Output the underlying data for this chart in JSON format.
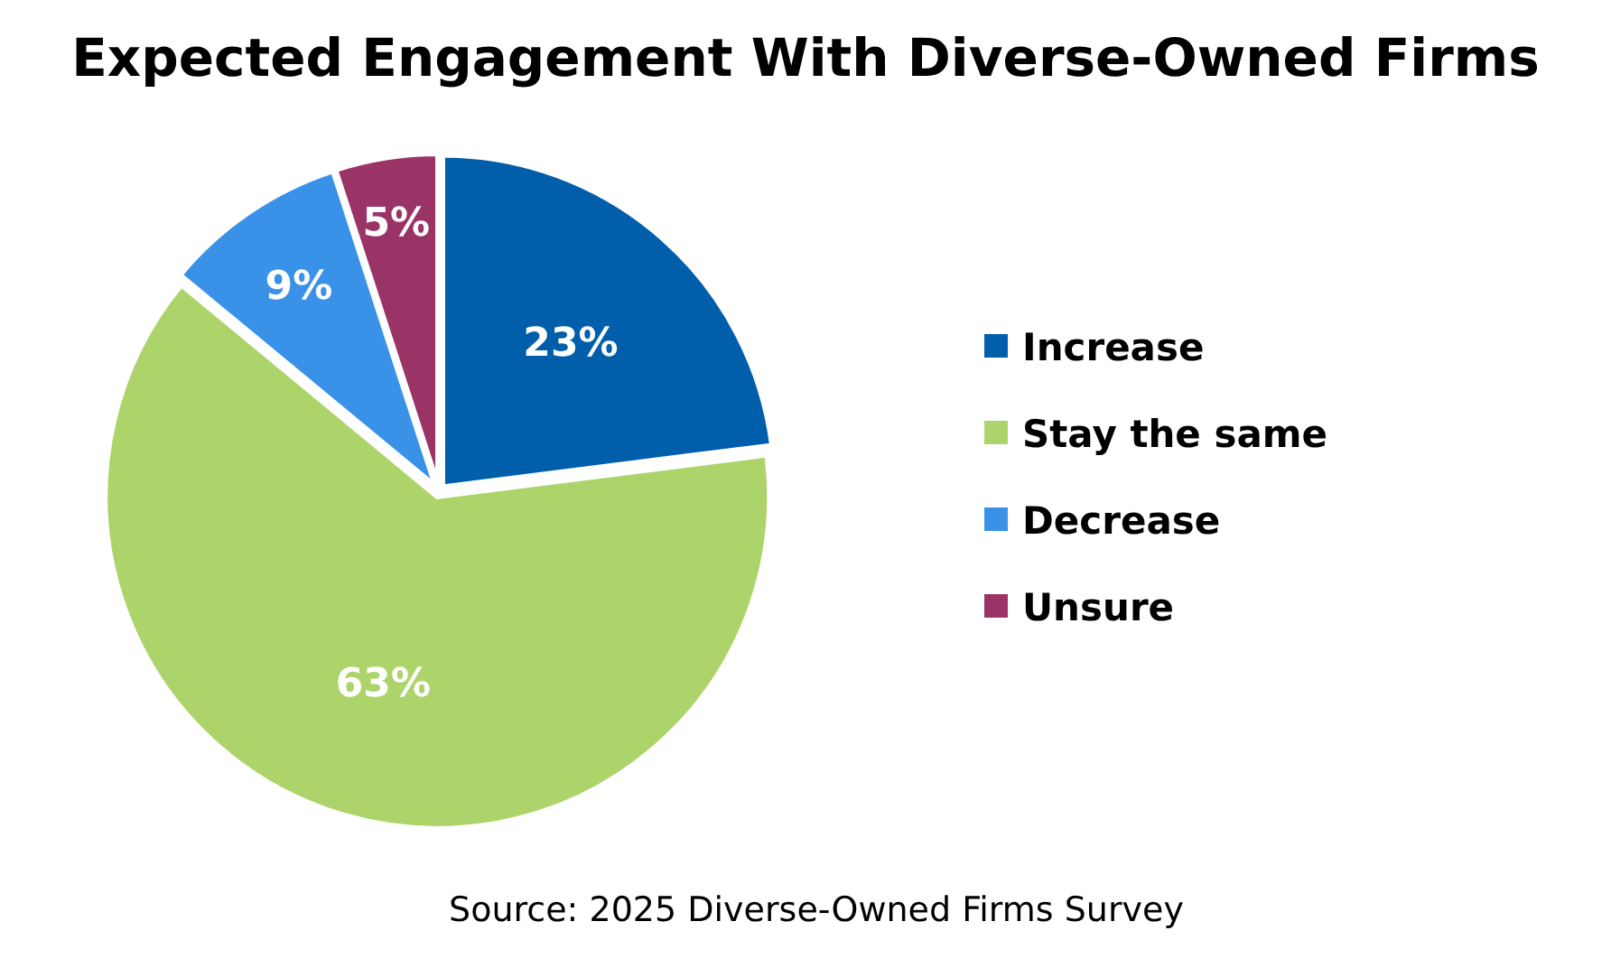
{
  "chart_data": {
    "type": "pie",
    "title": "Expected Engagement With Diverse-Owned Firms",
    "categories": [
      "Increase",
      "Stay the same",
      "Decrease",
      "Unsure"
    ],
    "values": [
      23,
      63,
      9,
      5
    ],
    "colors": [
      "#015eaa",
      "#add46a",
      "#3a92e8",
      "#9a3366"
    ],
    "value_labels": [
      "23%",
      "63%",
      "9%",
      "5%"
    ],
    "legend": "right",
    "annotations": [
      "Source: 2025 Diverse-Owned Firms Survey"
    ]
  }
}
